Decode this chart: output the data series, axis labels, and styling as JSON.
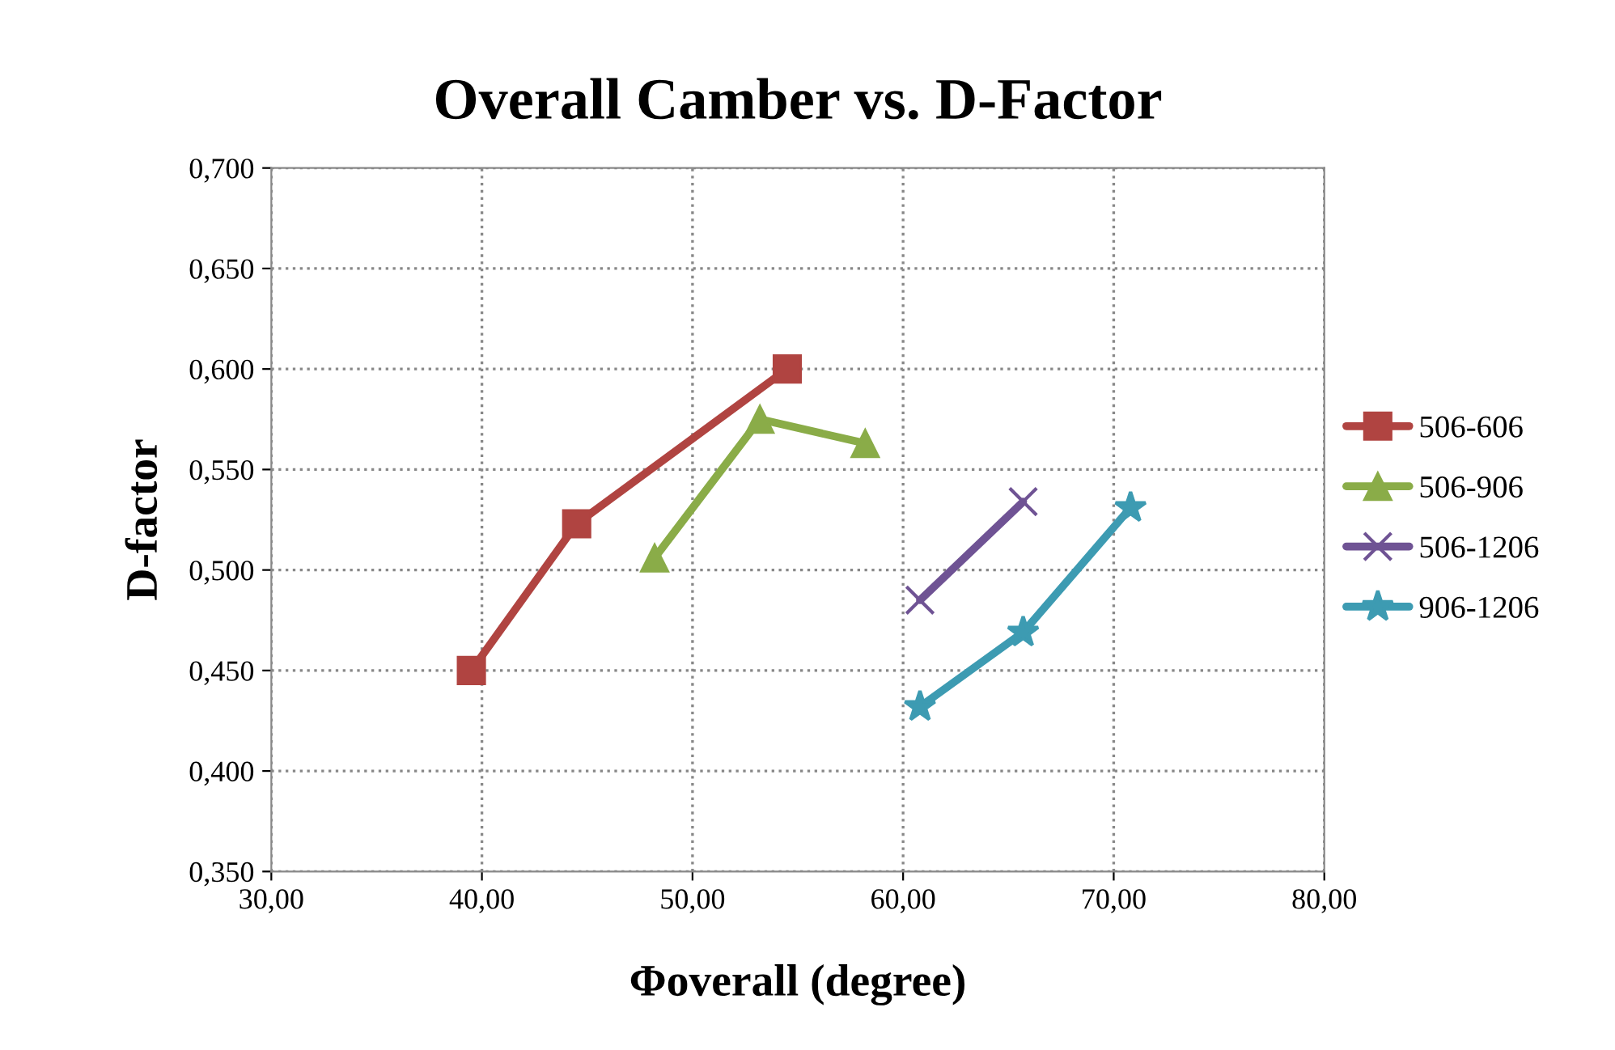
{
  "chart_data": {
    "type": "line",
    "title": "Overall Camber vs. D-Factor",
    "xlabel": "Φoverall (degree)",
    "ylabel": "D-factor",
    "series": [
      {
        "name": "506-606",
        "color": "#b04441",
        "marker": "square",
        "x": [
          39.5,
          44.5,
          54.5
        ],
        "values": [
          0.45,
          0.523,
          0.6
        ]
      },
      {
        "name": "506-906",
        "color": "#8aac48",
        "marker": "triangle",
        "x": [
          48.2,
          53.2,
          58.2
        ],
        "values": [
          0.506,
          0.575,
          0.563
        ]
      },
      {
        "name": "506-1206",
        "color": "#6f5394",
        "marker": "cross",
        "x": [
          60.8,
          65.7
        ],
        "values": [
          0.485,
          0.534
        ]
      },
      {
        "name": "906-1206",
        "color": "#3d9bb2",
        "marker": "star",
        "x": [
          60.8,
          65.7,
          70.8
        ],
        "values": [
          0.432,
          0.469,
          0.531
        ]
      }
    ],
    "xlim": [
      30,
      80
    ],
    "xticks": [
      {
        "value": 30,
        "label": "30,00"
      },
      {
        "value": 40,
        "label": "40,00"
      },
      {
        "value": 50,
        "label": "50,00"
      },
      {
        "value": 60,
        "label": "60,00"
      },
      {
        "value": 70,
        "label": "70,00"
      },
      {
        "value": 80,
        "label": "80,00"
      }
    ],
    "ylim": [
      0.35,
      0.7
    ],
    "yticks": [
      {
        "value": 0.35,
        "label": "0,350"
      },
      {
        "value": 0.4,
        "label": "0,400"
      },
      {
        "value": 0.45,
        "label": "0,450"
      },
      {
        "value": 0.5,
        "label": "0,500"
      },
      {
        "value": 0.55,
        "label": "0,550"
      },
      {
        "value": 0.6,
        "label": "0,600"
      },
      {
        "value": 0.65,
        "label": "0,650"
      },
      {
        "value": 0.7,
        "label": "0,700"
      }
    ],
    "grid": true,
    "legend": "right",
    "line_style": "solid"
  }
}
